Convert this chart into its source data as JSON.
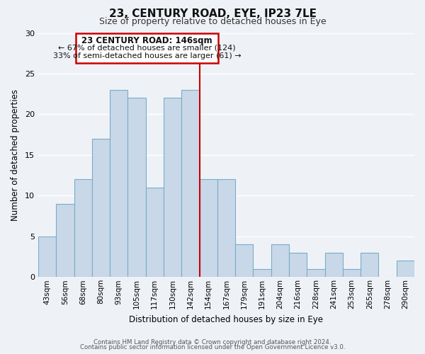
{
  "title": "23, CENTURY ROAD, EYE, IP23 7LE",
  "subtitle": "Size of property relative to detached houses in Eye",
  "xlabel": "Distribution of detached houses by size in Eye",
  "ylabel": "Number of detached properties",
  "bin_labels": [
    "43sqm",
    "56sqm",
    "68sqm",
    "80sqm",
    "93sqm",
    "105sqm",
    "117sqm",
    "130sqm",
    "142sqm",
    "154sqm",
    "167sqm",
    "179sqm",
    "191sqm",
    "204sqm",
    "216sqm",
    "228sqm",
    "241sqm",
    "253sqm",
    "265sqm",
    "278sqm",
    "290sqm"
  ],
  "bar_values": [
    5,
    9,
    12,
    17,
    23,
    22,
    11,
    22,
    23,
    12,
    12,
    4,
    1,
    4,
    3,
    1,
    3,
    1,
    3,
    0,
    2
  ],
  "bar_color": "#c8d8e8",
  "bar_edge_color": "#7aacc8",
  "vline_bar_index": 8,
  "vline_color": "#cc0000",
  "ylim": [
    0,
    30
  ],
  "yticks": [
    0,
    5,
    10,
    15,
    20,
    25,
    30
  ],
  "annotation_title": "23 CENTURY ROAD: 146sqm",
  "annotation_line1": "← 67% of detached houses are smaller (124)",
  "annotation_line2": "33% of semi-detached houses are larger (61) →",
  "annotation_box_facecolor": "#ffffff",
  "annotation_box_edgecolor": "#cc0000",
  "footer_line1": "Contains HM Land Registry data © Crown copyright and database right 2024.",
  "footer_line2": "Contains public sector information licensed under the Open Government Licence v3.0.",
  "bg_color": "#eef2f7",
  "grid_color": "#ffffff",
  "title_fontsize": 11,
  "subtitle_fontsize": 9,
  "bar_width": 1.0
}
